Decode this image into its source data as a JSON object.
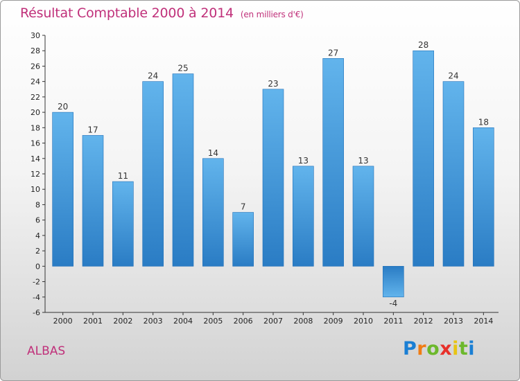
{
  "chart_data": {
    "type": "bar",
    "title": "Résultat Comptable 2000 à 2014",
    "subtitle": "(en milliers d'€)",
    "categories": [
      "2000",
      "2001",
      "2002",
      "2003",
      "2004",
      "2005",
      "2006",
      "2007",
      "2008",
      "2009",
      "2010",
      "2011",
      "2012",
      "2013",
      "2014"
    ],
    "values": [
      20,
      17,
      11,
      24,
      25,
      14,
      7,
      23,
      13,
      27,
      13,
      -4,
      28,
      24,
      18
    ],
    "ylim": [
      -6,
      30
    ],
    "ytick_step": 2,
    "grid": false,
    "xlabel": "",
    "ylabel": ""
  },
  "footer": {
    "commune": "ALBAS",
    "logo_letters": [
      "P",
      "r",
      "o",
      "x",
      "i",
      "t",
      "i"
    ]
  },
  "colors": {
    "title": "#c0307a",
    "bar_light": "#62b4ec",
    "bar_dark": "#2a7cc4",
    "logo": [
      "#1a7fd4",
      "#f07c14",
      "#6cb82c",
      "#e8302a",
      "#e8c414",
      "#6cb82c",
      "#1a7fd4"
    ]
  }
}
